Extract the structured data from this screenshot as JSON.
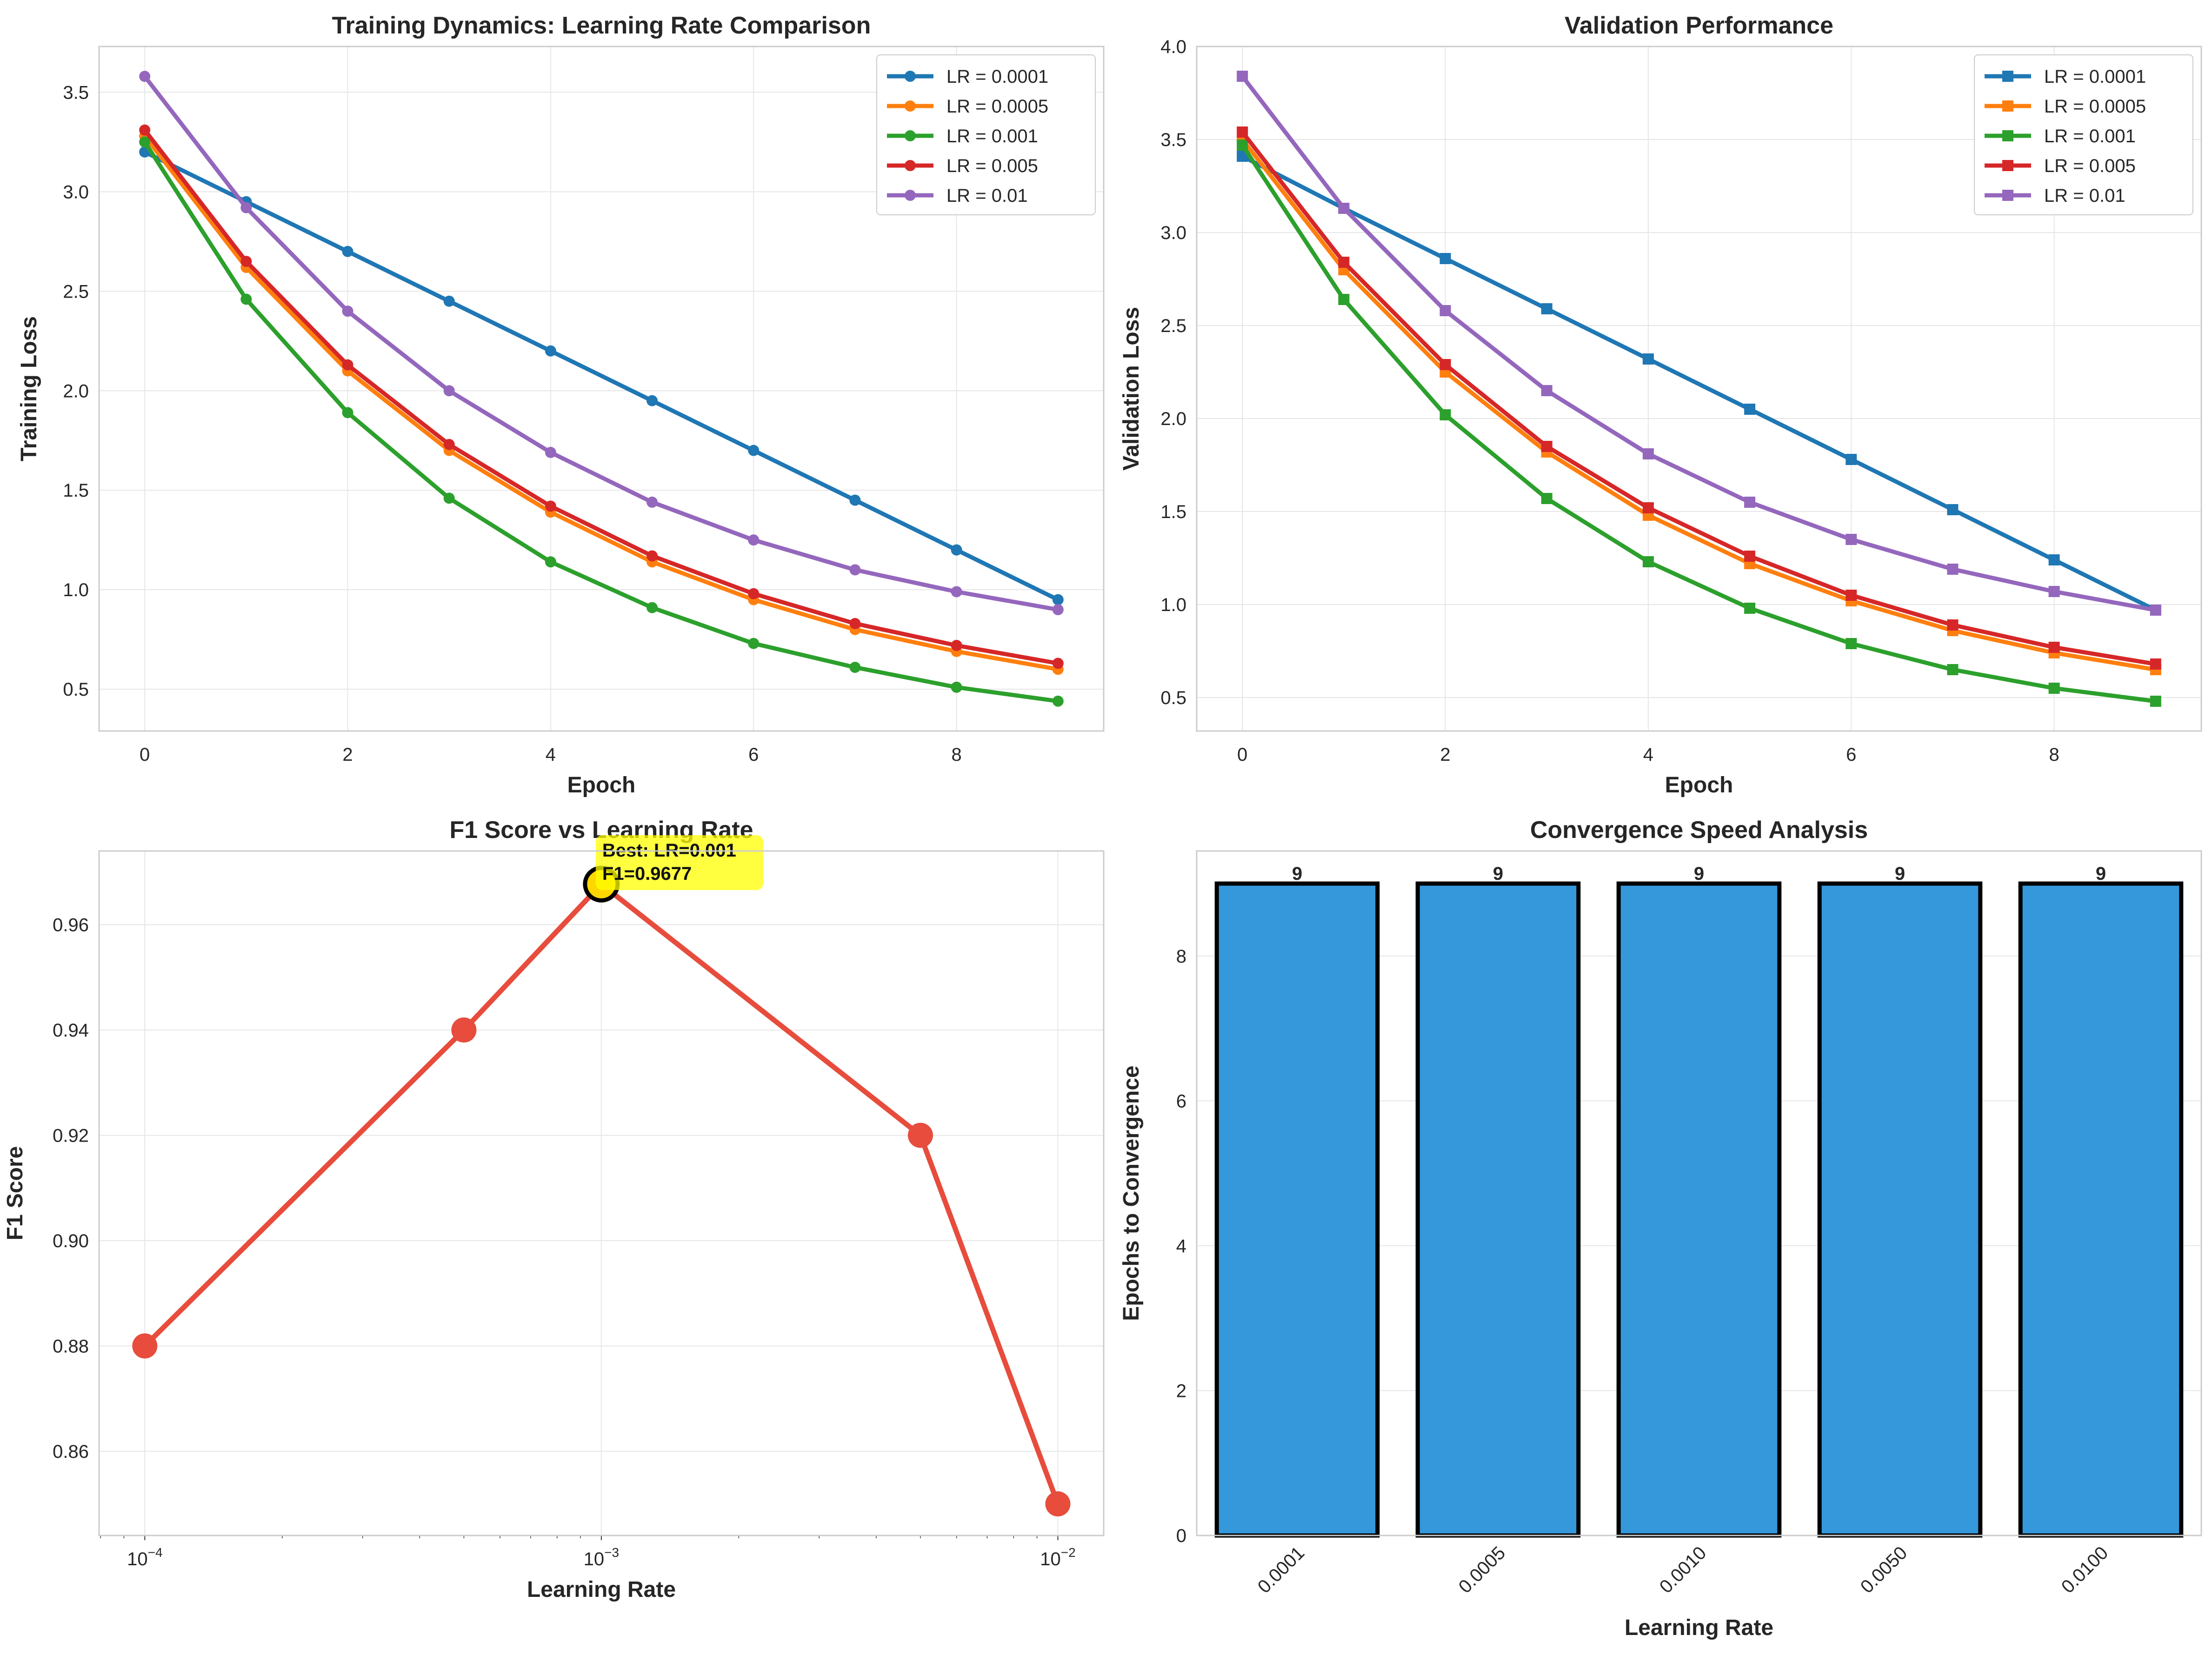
{
  "chart_data": [
    {
      "type": "line",
      "title": "Training Dynamics: Learning Rate Comparison",
      "xlabel": "Epoch",
      "ylabel": "Training Loss",
      "xlim": [
        -0.45,
        9.45
      ],
      "ylim": [
        0.29,
        3.73
      ],
      "xticks": [
        0,
        2,
        4,
        6,
        8
      ],
      "yticks": [
        0.5,
        1.0,
        1.5,
        2.0,
        2.5,
        3.0,
        3.5
      ],
      "ytick_format": "1",
      "grid": true,
      "legend": "top-right",
      "marker": "circle",
      "x": [
        0,
        1,
        2,
        3,
        4,
        5,
        6,
        7,
        8,
        9
      ],
      "series": [
        {
          "name": "LR = 0.0001",
          "color": "#1f77b4",
          "values": [
            3.2,
            2.95,
            2.7,
            2.45,
            2.2,
            1.95,
            1.7,
            1.45,
            1.2,
            0.95
          ]
        },
        {
          "name": "LR = 0.0005",
          "color": "#ff7f0e",
          "values": [
            3.28,
            2.62,
            2.1,
            1.7,
            1.39,
            1.14,
            0.95,
            0.8,
            0.69,
            0.6
          ]
        },
        {
          "name": "LR = 0.001",
          "color": "#2ca02c",
          "values": [
            3.25,
            2.46,
            1.89,
            1.46,
            1.14,
            0.91,
            0.73,
            0.61,
            0.51,
            0.44
          ]
        },
        {
          "name": "LR = 0.005",
          "color": "#d62728",
          "values": [
            3.31,
            2.65,
            2.13,
            1.73,
            1.42,
            1.17,
            0.98,
            0.83,
            0.72,
            0.63
          ]
        },
        {
          "name": "LR = 0.01",
          "color": "#9467bd",
          "values": [
            3.58,
            2.92,
            2.4,
            2.0,
            1.69,
            1.44,
            1.25,
            1.1,
            0.99,
            0.9
          ]
        }
      ]
    },
    {
      "type": "line",
      "title": "Validation Performance",
      "xlabel": "Epoch",
      "ylabel": "Validation Loss",
      "xlim": [
        -0.45,
        9.45
      ],
      "ylim": [
        0.32,
        4.0
      ],
      "xticks": [
        0,
        2,
        4,
        6,
        8
      ],
      "yticks": [
        0.5,
        1.0,
        1.5,
        2.0,
        2.5,
        3.0,
        3.5,
        4.0
      ],
      "ytick_format": "1",
      "grid": true,
      "legend": "top-right",
      "marker": "square",
      "x": [
        0,
        1,
        2,
        3,
        4,
        5,
        6,
        7,
        8,
        9
      ],
      "series": [
        {
          "name": "LR = 0.0001",
          "color": "#1f77b4",
          "values": [
            3.41,
            3.13,
            2.86,
            2.59,
            2.32,
            2.05,
            1.78,
            1.51,
            1.24,
            0.97
          ]
        },
        {
          "name": "LR = 0.0005",
          "color": "#ff7f0e",
          "values": [
            3.5,
            2.8,
            2.25,
            1.82,
            1.48,
            1.22,
            1.02,
            0.86,
            0.74,
            0.65
          ]
        },
        {
          "name": "LR = 0.001",
          "color": "#2ca02c",
          "values": [
            3.47,
            2.64,
            2.02,
            1.57,
            1.23,
            0.98,
            0.79,
            0.65,
            0.55,
            0.48
          ]
        },
        {
          "name": "LR = 0.005",
          "color": "#d62728",
          "values": [
            3.54,
            2.84,
            2.29,
            1.85,
            1.52,
            1.26,
            1.05,
            0.89,
            0.77,
            0.68
          ]
        },
        {
          "name": "LR = 0.01",
          "color": "#9467bd",
          "values": [
            3.84,
            3.13,
            2.58,
            2.15,
            1.81,
            1.55,
            1.35,
            1.19,
            1.07,
            0.97
          ]
        }
      ]
    },
    {
      "type": "line",
      "title": "F1 Score vs Learning Rate",
      "xlabel": "Learning Rate",
      "ylabel": "F1 Score",
      "xscale": "log",
      "xlim": [
        7.94e-05,
        0.0126
      ],
      "ylim": [
        0.844,
        0.974
      ],
      "xticks": [
        0.0001,
        0.001,
        0.01
      ],
      "xtick_labels": [
        {
          "base": "10",
          "exp": "−4"
        },
        {
          "base": "10",
          "exp": "−3"
        },
        {
          "base": "10",
          "exp": "−2"
        }
      ],
      "yticks": [
        0.86,
        0.88,
        0.9,
        0.92,
        0.94,
        0.96
      ],
      "ytick_format": "2",
      "grid": true,
      "color": "#e74c3c",
      "x": [
        0.0001,
        0.0005,
        0.001,
        0.005,
        0.01
      ],
      "values": [
        0.88,
        0.94,
        0.9677,
        0.92,
        0.85
      ],
      "best": {
        "x": 0.001,
        "y": 0.9677,
        "marker_color": "#ffd700"
      },
      "annotation": {
        "lines": [
          "Best: LR=0.001",
          "F1=0.9677"
        ],
        "bg": "#ffff00"
      }
    },
    {
      "type": "bar",
      "title": "Convergence Speed Analysis",
      "xlabel": "Learning Rate",
      "ylabel": "Epochs to Convergence",
      "categories": [
        "0.0001",
        "0.0005",
        "0.0010",
        "0.0050",
        "0.0100"
      ],
      "values": [
        9,
        9,
        9,
        9,
        9
      ],
      "data_labels": [
        "9",
        "9",
        "9",
        "9",
        "9"
      ],
      "ylim": [
        0,
        9.45
      ],
      "yticks": [
        0,
        2,
        4,
        6,
        8
      ],
      "ytick_format": "0",
      "grid": true,
      "color": "#3498db",
      "edge_color": "#000000"
    }
  ]
}
